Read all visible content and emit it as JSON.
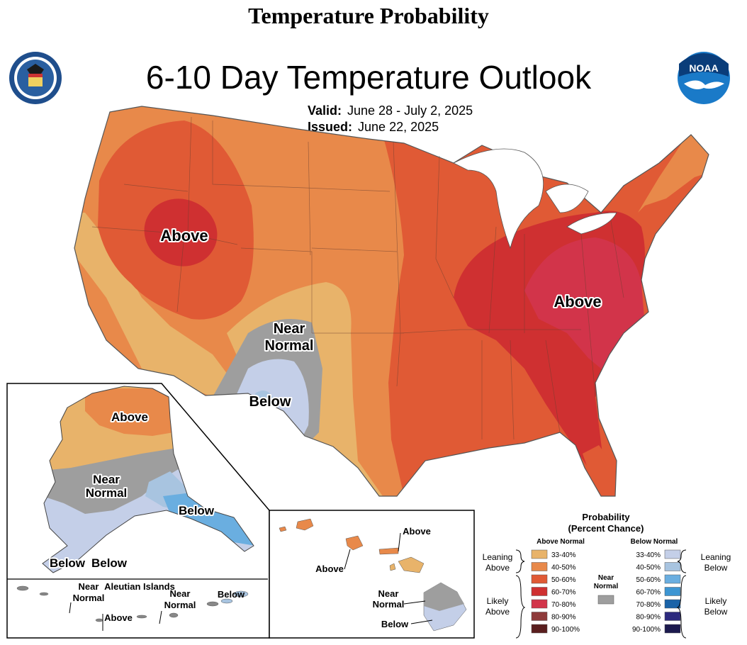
{
  "header": {
    "page_title": "Temperature Probability",
    "map_title": "6-10 Day Temperature Outlook",
    "valid_label": "Valid:",
    "valid_dates": "June 28 - July 2, 2025",
    "issued_label": "Issued:",
    "issued_date": "June 22, 2025"
  },
  "logos": {
    "doc_seal": "DEPARTMENT OF COMMERCE - UNITED STATES OF AMERICA",
    "noaa": "NOAA"
  },
  "map_labels": {
    "conus_above_west": "Above",
    "conus_above_east": "Above",
    "conus_near_normal_1": "Near",
    "conus_near_normal_2": "Normal",
    "conus_below": "Below",
    "ak_above": "Above",
    "ak_near_1": "Near",
    "ak_near_2": "Normal",
    "ak_below_se": "Below",
    "ak_below_sw1": "Below",
    "ak_below_sw2": "Below",
    "aleutian_title": "Aleutian Islands",
    "aleut_near1_a": "Near",
    "aleut_near1_b": "Normal",
    "aleut_above": "Above",
    "aleut_near2_a": "Near",
    "aleut_near2_b": "Normal",
    "aleut_below": "Below",
    "hi_above_top": "Above",
    "hi_above_left": "Above",
    "hi_near_a": "Near",
    "hi_near_b": "Normal",
    "hi_below": "Below"
  },
  "legend": {
    "title_1": "Probability",
    "title_2": "(Percent Chance)",
    "above_header": "Above Normal",
    "below_header": "Below Normal",
    "near_1": "Near",
    "near_2": "Normal",
    "leaning_above_1": "Leaning",
    "leaning_above_2": "Above",
    "likely_above_1": "Likely",
    "likely_above_2": "Above",
    "leaning_below_1": "Leaning",
    "leaning_below_2": "Below",
    "likely_below_1": "Likely",
    "likely_below_2": "Below",
    "above": [
      {
        "range": "33-40%",
        "color": "#e8b36a"
      },
      {
        "range": "40-50%",
        "color": "#e8894a"
      },
      {
        "range": "50-60%",
        "color": "#e05a35"
      },
      {
        "range": "60-70%",
        "color": "#cf3031"
      },
      {
        "range": "70-80%",
        "color": "#d2344a"
      },
      {
        "range": "80-90%",
        "color": "#8e3a3a"
      },
      {
        "range": "90-100%",
        "color": "#5a1e1e"
      }
    ],
    "below": [
      {
        "range": "33-40%",
        "color": "#c4cfe8"
      },
      {
        "range": "40-50%",
        "color": "#a8c4e0"
      },
      {
        "range": "50-60%",
        "color": "#6aaee0"
      },
      {
        "range": "60-70%",
        "color": "#3c95d2"
      },
      {
        "range": "70-80%",
        "color": "#1a63a8"
      },
      {
        "range": "80-90%",
        "color": "#2c2a7e"
      },
      {
        "range": "90-100%",
        "color": "#1c1a4e"
      }
    ],
    "near_color": "#9e9e9e"
  },
  "colors": {
    "above_33": "#e8b36a",
    "above_40": "#e8894a",
    "above_50": "#e05a35",
    "above_60": "#cf3031",
    "above_70": "#d2344a",
    "near": "#9e9e9e",
    "below_33": "#c4cfe8",
    "below_40": "#a8c4e0",
    "below_50": "#6aaee0"
  }
}
